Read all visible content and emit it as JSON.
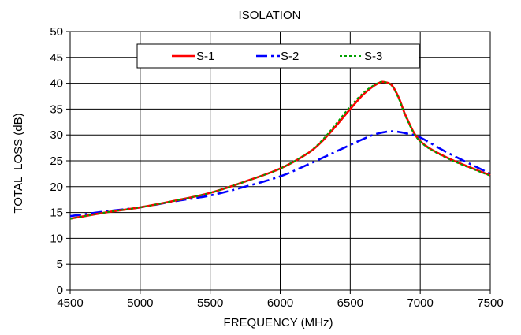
{
  "chart_data": {
    "type": "line",
    "title": "ISOLATION",
    "xlabel": "FREQUENCY (MHz)",
    "ylabel": "TOTAL  LOSS (dB)",
    "xlim": [
      4500,
      7500
    ],
    "ylim": [
      0,
      50
    ],
    "xticks": [
      4500,
      5000,
      5500,
      6000,
      6500,
      7000,
      7500
    ],
    "yticks": [
      0,
      5,
      10,
      15,
      20,
      25,
      30,
      35,
      40,
      45,
      50
    ],
    "grid": true,
    "legend_position": "top-center",
    "series": [
      {
        "name": "S-1",
        "color": "#ff0000",
        "dash": "solid",
        "x": [
          4500,
          4750,
          5000,
          5250,
          5500,
          5750,
          6000,
          6200,
          6300,
          6400,
          6500,
          6600,
          6700,
          6750,
          6800,
          6850,
          6900,
          7000,
          7200,
          7500
        ],
        "y": [
          13.8,
          15.0,
          16.0,
          17.3,
          18.8,
          21.0,
          23.5,
          26.5,
          28.8,
          31.8,
          35.0,
          38.0,
          40.0,
          40.2,
          39.5,
          37.0,
          33.5,
          28.8,
          25.5,
          22.2
        ]
      },
      {
        "name": "S-2",
        "color": "#0000ff",
        "dash": "dashdot",
        "x": [
          4500,
          4750,
          5000,
          5250,
          5500,
          5750,
          6000,
          6200,
          6400,
          6600,
          6700,
          6800,
          6900,
          7000,
          7200,
          7500
        ],
        "y": [
          14.3,
          15.2,
          16.0,
          17.2,
          18.3,
          20.0,
          22.0,
          24.3,
          26.8,
          29.3,
          30.3,
          30.7,
          30.3,
          29.5,
          26.5,
          22.5
        ]
      },
      {
        "name": "S-3",
        "color": "#00a000",
        "dash": "dotted",
        "x": [
          4500,
          4750,
          5000,
          5250,
          5500,
          5750,
          6000,
          6200,
          6300,
          6400,
          6500,
          6600,
          6700,
          6750,
          6800,
          6850,
          6900,
          7000,
          7200,
          7500
        ],
        "y": [
          13.8,
          15.0,
          16.0,
          17.3,
          18.8,
          21.0,
          23.5,
          26.6,
          29.0,
          32.2,
          35.5,
          38.3,
          40.1,
          40.2,
          39.4,
          36.8,
          33.3,
          28.7,
          25.4,
          22.1
        ]
      }
    ]
  }
}
